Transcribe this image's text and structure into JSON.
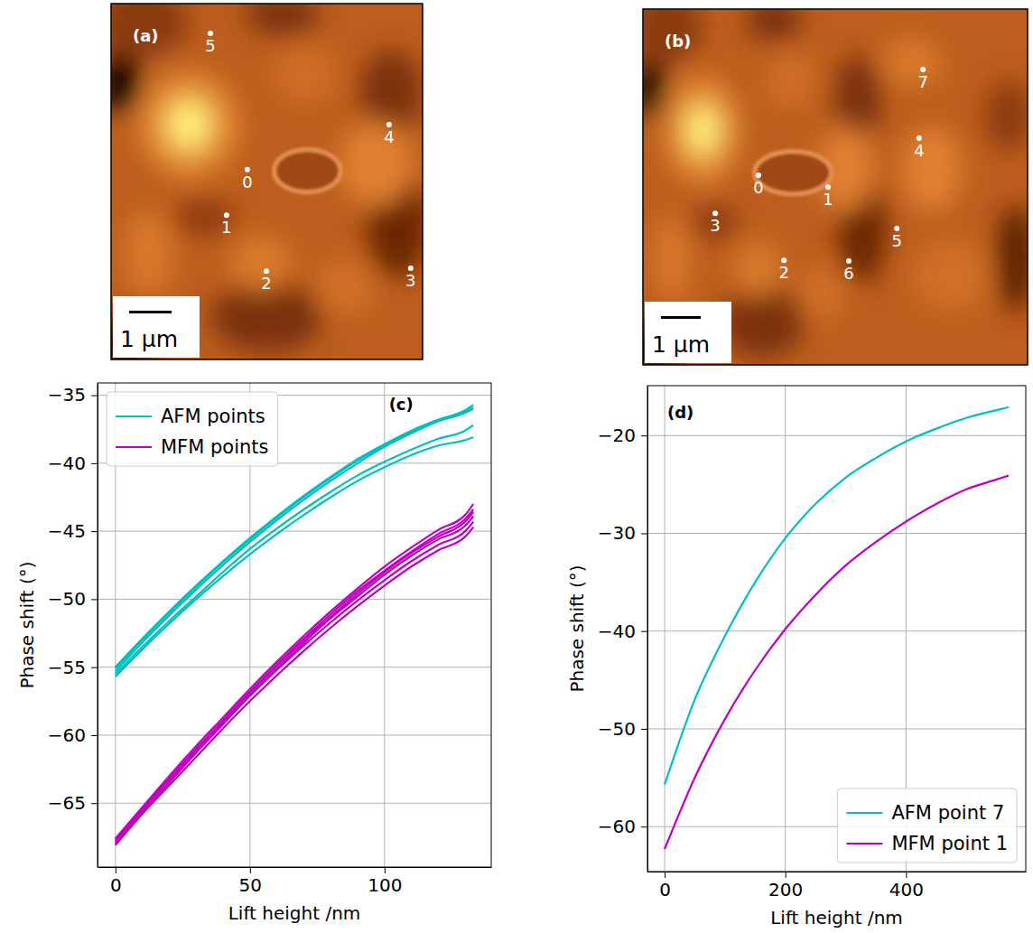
{
  "chart_data": [
    {
      "type": "image",
      "title": "(a)",
      "xlim": [
        0,
        7.34
      ],
      "ylim": [
        0,
        8.38
      ],
      "tick_labels": false,
      "scale_bar": {
        "value": 1,
        "label": "1 µm"
      },
      "points": [
        {
          "label": "5",
          "x": 2.34,
          "y": 0.7
        },
        {
          "label": "4",
          "x": 6.55,
          "y": 2.85
        },
        {
          "label": "0",
          "x": 3.21,
          "y": 3.91
        },
        {
          "label": "1",
          "x": 2.72,
          "y": 4.98
        },
        {
          "label": "2",
          "x": 3.66,
          "y": 6.3
        },
        {
          "label": "3",
          "x": 7.06,
          "y": 6.23
        }
      ]
    },
    {
      "type": "image",
      "title": "(b)",
      "xlim": [
        0,
        9.68
      ],
      "ylim": [
        0,
        8.95
      ],
      "tick_labels": false,
      "scale_bar": {
        "value": 1,
        "label": "1 µm"
      },
      "points": [
        {
          "label": "7",
          "x": 7.05,
          "y": 1.52
        },
        {
          "label": "4",
          "x": 6.95,
          "y": 3.25
        },
        {
          "label": "0",
          "x": 2.91,
          "y": 4.18
        },
        {
          "label": "1",
          "x": 4.66,
          "y": 4.48
        },
        {
          "label": "3",
          "x": 1.82,
          "y": 5.14
        },
        {
          "label": "5",
          "x": 6.39,
          "y": 5.52
        },
        {
          "label": "2",
          "x": 3.55,
          "y": 6.32
        },
        {
          "label": "6",
          "x": 5.18,
          "y": 6.34
        }
      ]
    },
    {
      "type": "line",
      "title": "(c)",
      "x_label": "Lift height /nm",
      "y_label": "Phase shift (°)",
      "x": [
        0,
        10,
        20,
        30,
        40,
        50,
        60,
        70,
        80,
        90,
        100,
        110,
        120,
        130,
        133
      ],
      "series": [
        {
          "name": "AFM points",
          "color": "#00bfbf",
          "curves": [
            [
              -55.0,
              -52.9,
              -50.9,
              -49.0,
              -47.2,
              -45.5,
              -43.9,
              -42.4,
              -41.0,
              -39.7,
              -38.6,
              -37.6,
              -36.8,
              -36.1,
              -35.7
            ],
            [
              -55.3,
              -53.2,
              -51.2,
              -49.3,
              -47.5,
              -45.8,
              -44.2,
              -42.7,
              -41.3,
              -40.0,
              -38.8,
              -37.8,
              -36.9,
              -36.2,
              -35.9
            ],
            [
              -55.1,
              -53.0,
              -51.0,
              -49.1,
              -47.3,
              -45.6,
              -44.0,
              -42.5,
              -41.1,
              -39.8,
              -38.7,
              -37.7,
              -36.9,
              -36.3,
              -36.0
            ],
            [
              -55.5,
              -53.5,
              -51.6,
              -49.8,
              -48.0,
              -46.3,
              -44.8,
              -43.4,
              -42.1,
              -40.9,
              -39.9,
              -39.0,
              -38.2,
              -37.6,
              -37.2
            ],
            [
              -55.7,
              -53.7,
              -51.8,
              -50.0,
              -48.3,
              -46.7,
              -45.2,
              -43.8,
              -42.5,
              -41.3,
              -40.3,
              -39.4,
              -38.7,
              -38.3,
              -38.1
            ]
          ]
        },
        {
          "name": "MFM points",
          "color": "#bf00bf",
          "curves": [
            [
              -67.6,
              -65.3,
              -63.0,
              -60.8,
              -58.7,
              -56.6,
              -54.6,
              -52.7,
              -50.9,
              -49.2,
              -47.6,
              -46.2,
              -44.9,
              -43.8,
              -43.0
            ],
            [
              -67.8,
              -65.5,
              -63.2,
              -61.0,
              -58.9,
              -56.8,
              -54.8,
              -52.9,
              -51.1,
              -49.4,
              -47.9,
              -46.5,
              -45.2,
              -44.1,
              -43.4
            ],
            [
              -68.0,
              -65.7,
              -63.5,
              -61.3,
              -59.2,
              -57.1,
              -55.1,
              -53.2,
              -51.4,
              -49.8,
              -48.2,
              -46.8,
              -45.6,
              -44.6,
              -43.9
            ],
            [
              -67.7,
              -65.4,
              -63.2,
              -61.1,
              -59.1,
              -57.1,
              -55.2,
              -53.4,
              -51.7,
              -50.1,
              -48.6,
              -47.2,
              -46.0,
              -45.0,
              -44.3
            ],
            [
              -68.1,
              -65.8,
              -63.7,
              -61.6,
              -59.5,
              -57.5,
              -55.6,
              -53.8,
              -52.1,
              -50.5,
              -49.0,
              -47.6,
              -46.4,
              -45.4,
              -44.7
            ],
            [
              -67.9,
              -65.6,
              -63.4,
              -61.2,
              -59.0,
              -56.9,
              -54.9,
              -53.0,
              -51.3,
              -49.6,
              -48.0,
              -46.6,
              -45.4,
              -44.3,
              -43.6
            ]
          ]
        }
      ],
      "xlim": [
        -6.65,
        139.65
      ],
      "ylim": [
        -69.7,
        -34.1
      ],
      "xticks": [
        0,
        50,
        100
      ],
      "yticks": [
        {
          "value": -65,
          "label": "−65"
        },
        {
          "value": -60,
          "label": "−60"
        },
        {
          "value": -55,
          "label": "−55"
        },
        {
          "value": -50,
          "label": "−50"
        },
        {
          "value": -45,
          "label": "−45"
        },
        {
          "value": -40,
          "label": "−40"
        },
        {
          "value": -35,
          "label": "−35"
        }
      ],
      "grid": true,
      "legend": "upper left"
    },
    {
      "type": "line",
      "title": "(d)",
      "x_label": "Lift height /nm",
      "y_label": "Phase shift (°)",
      "x": [
        0,
        50,
        100,
        150,
        200,
        250,
        300,
        350,
        400,
        450,
        500,
        550,
        570
      ],
      "series": [
        {
          "name": "AFM point 7",
          "color": "#00bfbf",
          "values": [
            -55.7,
            -47.0,
            -40.5,
            -35.0,
            -30.5,
            -27.0,
            -24.3,
            -22.3,
            -20.6,
            -19.3,
            -18.2,
            -17.4,
            -17.1
          ]
        },
        {
          "name": "MFM point 1",
          "color": "#bf00bf",
          "values": [
            -62.3,
            -55.0,
            -49.0,
            -44.0,
            -39.8,
            -36.3,
            -33.3,
            -30.9,
            -28.8,
            -27.0,
            -25.5,
            -24.5,
            -24.1
          ]
        }
      ],
      "xlim": [
        -28.5,
        598.5
      ],
      "ylim": [
        -64.6,
        -14.9
      ],
      "xticks": [
        0,
        200,
        400
      ],
      "yticks": [
        {
          "value": -60,
          "label": "−60"
        },
        {
          "value": -50,
          "label": "−50"
        },
        {
          "value": -40,
          "label": "−40"
        },
        {
          "value": -30,
          "label": "−30"
        },
        {
          "value": -20,
          "label": "−20"
        }
      ],
      "grid": true,
      "legend": "lower right"
    }
  ]
}
